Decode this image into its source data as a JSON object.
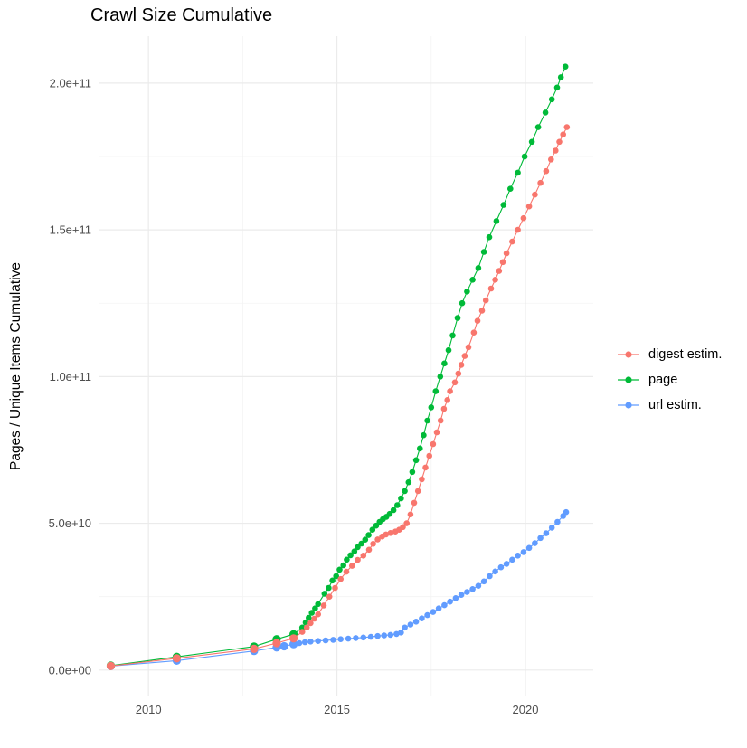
{
  "chart_data": {
    "type": "line",
    "title": "Crawl Size Cumulative",
    "ylabel": "Pages / Unique Items Cumulative",
    "xlabel": "",
    "grid": true,
    "legend_position": "right",
    "xlim": [
      2008.7,
      2021.8
    ],
    "ylim": [
      -9000000000.0,
      216000000000.0
    ],
    "x_ticks": [
      {
        "value": 2010,
        "label": "2010"
      },
      {
        "value": 2015,
        "label": "2015"
      },
      {
        "value": 2020,
        "label": "2020"
      }
    ],
    "y_ticks": [
      {
        "value": 0,
        "label": "0.0e+00"
      },
      {
        "value": 50000000000.0,
        "label": "5.0e+10"
      },
      {
        "value": 100000000000.0,
        "label": "1.0e+11"
      },
      {
        "value": 150000000000.0,
        "label": "1.5e+11"
      },
      {
        "value": 200000000000.0,
        "label": "2.0e+11"
      }
    ],
    "x_minor": [
      2012.5,
      2017.5
    ],
    "y_minor": [
      25000000000.0,
      75000000000.0,
      125000000000.0,
      175000000000.0
    ],
    "colors": {
      "grid_major": "#ebebeb",
      "grid_minor": "#f3f3f3",
      "tick_text": "#4d4d4d"
    },
    "series": [
      {
        "name": "digest estim.",
        "color": "#F8766D",
        "points": [
          [
            2009.0,
            1400000000.0
          ],
          [
            2010.75,
            4000000000.0
          ],
          [
            2012.8,
            7200000000.0
          ],
          [
            2013.4,
            9200000000.0
          ],
          [
            2013.85,
            10800000000.0
          ],
          [
            2014.08,
            13000000000.0
          ],
          [
            2014.2,
            14500000000.0
          ],
          [
            2014.3,
            16000000000.0
          ],
          [
            2014.4,
            17500000000.0
          ],
          [
            2014.5,
            19000000000.0
          ],
          [
            2014.65,
            22000000000.0
          ],
          [
            2014.8,
            25000000000.0
          ],
          [
            2014.95,
            28000000000.0
          ],
          [
            2015.1,
            31000000000.0
          ],
          [
            2015.25,
            33500000000.0
          ],
          [
            2015.4,
            35500000000.0
          ],
          [
            2015.55,
            37500000000.0
          ],
          [
            2015.7,
            39000000000.0
          ],
          [
            2015.85,
            41000000000.0
          ],
          [
            2015.96,
            43000000000.0
          ],
          [
            2016.08,
            44500000000.0
          ],
          [
            2016.2,
            45500000000.0
          ],
          [
            2016.3,
            46200000000.0
          ],
          [
            2016.42,
            46700000000.0
          ],
          [
            2016.55,
            47200000000.0
          ],
          [
            2016.65,
            47800000000.0
          ],
          [
            2016.75,
            48700000000.0
          ],
          [
            2016.85,
            50000000000.0
          ],
          [
            2016.95,
            53000000000.0
          ],
          [
            2017.05,
            57000000000.0
          ],
          [
            2017.15,
            61000000000.0
          ],
          [
            2017.25,
            65000000000.0
          ],
          [
            2017.35,
            69000000000.0
          ],
          [
            2017.45,
            73000000000.0
          ],
          [
            2017.55,
            77000000000.0
          ],
          [
            2017.65,
            81000000000.0
          ],
          [
            2017.75,
            85000000000.0
          ],
          [
            2017.84,
            89000000000.0
          ],
          [
            2017.93,
            92000000000.0
          ],
          [
            2018.0,
            95000000000.0
          ],
          [
            2018.13,
            98000000000.0
          ],
          [
            2018.22,
            101000000000.0
          ],
          [
            2018.3,
            104000000000.0
          ],
          [
            2018.39,
            107000000000.0
          ],
          [
            2018.49,
            110000000000.0
          ],
          [
            2018.63,
            115000000000.0
          ],
          [
            2018.73,
            119000000000.0
          ],
          [
            2018.85,
            122500000000.0
          ],
          [
            2018.95,
            126000000000.0
          ],
          [
            2019.09,
            130000000000.0
          ],
          [
            2019.2,
            133000000000.0
          ],
          [
            2019.3,
            136000000000.0
          ],
          [
            2019.4,
            139000000000.0
          ],
          [
            2019.5,
            142000000000.0
          ],
          [
            2019.65,
            146000000000.0
          ],
          [
            2019.8,
            150000000000.0
          ],
          [
            2019.95,
            154000000000.0
          ],
          [
            2020.1,
            158000000000.0
          ],
          [
            2020.25,
            162000000000.0
          ],
          [
            2020.4,
            166000000000.0
          ],
          [
            2020.55,
            170000000000.0
          ],
          [
            2020.68,
            174000000000.0
          ],
          [
            2020.8,
            177000000000.0
          ],
          [
            2020.9,
            180000000000.0
          ],
          [
            2021.0,
            182500000000.0
          ],
          [
            2021.1,
            185000000000.0
          ]
        ]
      },
      {
        "name": "page",
        "color": "#00BA38",
        "points": [
          [
            2009.0,
            1500000000.0
          ],
          [
            2010.75,
            4500000000.0
          ],
          [
            2012.8,
            8000000000.0
          ],
          [
            2013.4,
            10500000000.0
          ],
          [
            2013.85,
            12200000000.0
          ],
          [
            2014.08,
            14500000000.0
          ],
          [
            2014.17,
            16200000000.0
          ],
          [
            2014.25,
            17800000000.0
          ],
          [
            2014.33,
            19500000000.0
          ],
          [
            2014.42,
            21000000000.0
          ],
          [
            2014.5,
            22500000000.0
          ],
          [
            2014.67,
            26000000000.0
          ],
          [
            2014.78,
            28000000000.0
          ],
          [
            2014.88,
            30500000000.0
          ],
          [
            2014.98,
            32000000000.0
          ],
          [
            2015.07,
            34200000000.0
          ],
          [
            2015.17,
            35700000000.0
          ],
          [
            2015.26,
            37600000000.0
          ],
          [
            2015.36,
            39100000000.0
          ],
          [
            2015.46,
            40400000000.0
          ],
          [
            2015.55,
            41900000000.0
          ],
          [
            2015.65,
            43100000000.0
          ],
          [
            2015.75,
            44400000000.0
          ],
          [
            2015.84,
            46000000000.0
          ],
          [
            2015.94,
            47800000000.0
          ],
          [
            2016.04,
            49200000000.0
          ],
          [
            2016.13,
            50500000000.0
          ],
          [
            2016.22,
            51400000000.0
          ],
          [
            2016.31,
            52200000000.0
          ],
          [
            2016.4,
            53200000000.0
          ],
          [
            2016.5,
            54500000000.0
          ],
          [
            2016.6,
            56200000000.0
          ],
          [
            2016.7,
            58500000000.0
          ],
          [
            2016.8,
            61000000000.0
          ],
          [
            2016.9,
            64000000000.0
          ],
          [
            2017.0,
            67500000000.0
          ],
          [
            2017.1,
            71500000000.0
          ],
          [
            2017.2,
            75500000000.0
          ],
          [
            2017.3,
            80000000000.0
          ],
          [
            2017.4,
            85000000000.0
          ],
          [
            2017.5,
            89500000000.0
          ],
          [
            2017.62,
            95000000000.0
          ],
          [
            2017.74,
            100000000000.0
          ],
          [
            2017.85,
            104500000000.0
          ],
          [
            2017.96,
            109000000000.0
          ],
          [
            2018.07,
            114000000000.0
          ],
          [
            2018.2,
            120000000000.0
          ],
          [
            2018.32,
            125000000000.0
          ],
          [
            2018.45,
            129000000000.0
          ],
          [
            2018.6,
            133000000000.0
          ],
          [
            2018.75,
            137000000000.0
          ],
          [
            2018.9,
            142500000000.0
          ],
          [
            2019.04,
            147500000000.0
          ],
          [
            2019.23,
            153000000000.0
          ],
          [
            2019.42,
            158500000000.0
          ],
          [
            2019.6,
            164000000000.0
          ],
          [
            2019.8,
            169500000000.0
          ],
          [
            2019.98,
            175000000000.0
          ],
          [
            2020.17,
            180000000000.0
          ],
          [
            2020.34,
            185000000000.0
          ],
          [
            2020.53,
            190000000000.0
          ],
          [
            2020.7,
            194500000000.0
          ],
          [
            2020.84,
            198500000000.0
          ],
          [
            2020.94,
            202000000000.0
          ],
          [
            2021.06,
            205600000000.0
          ]
        ]
      },
      {
        "name": "url estim.",
        "color": "#619CFF",
        "points": [
          [
            2009.0,
            1350000000.0
          ],
          [
            2010.75,
            3200000000.0
          ],
          [
            2012.8,
            6500000000.0
          ],
          [
            2013.4,
            7700000000.0
          ],
          [
            2013.6,
            8100000000.0
          ],
          [
            2013.85,
            8800000000.0
          ],
          [
            2014.0,
            9200000000.0
          ],
          [
            2014.15,
            9500000000.0
          ],
          [
            2014.3,
            9700000000.0
          ],
          [
            2014.5,
            9900000000.0
          ],
          [
            2014.7,
            10100000000.0
          ],
          [
            2014.9,
            10300000000.0
          ],
          [
            2015.1,
            10500000000.0
          ],
          [
            2015.3,
            10700000000.0
          ],
          [
            2015.5,
            10900000000.0
          ],
          [
            2015.7,
            11100000000.0
          ],
          [
            2015.9,
            11300000000.0
          ],
          [
            2016.08,
            11600000000.0
          ],
          [
            2016.25,
            11800000000.0
          ],
          [
            2016.42,
            12000000000.0
          ],
          [
            2016.58,
            12300000000.0
          ],
          [
            2016.7,
            12800000000.0
          ],
          [
            2016.8,
            14500000000.0
          ],
          [
            2016.95,
            15500000000.0
          ],
          [
            2017.1,
            16500000000.0
          ],
          [
            2017.25,
            17600000000.0
          ],
          [
            2017.4,
            18700000000.0
          ],
          [
            2017.55,
            19800000000.0
          ],
          [
            2017.7,
            21000000000.0
          ],
          [
            2017.85,
            22100000000.0
          ],
          [
            2018.0,
            23300000000.0
          ],
          [
            2018.15,
            24500000000.0
          ],
          [
            2018.3,
            25600000000.0
          ],
          [
            2018.45,
            26600000000.0
          ],
          [
            2018.6,
            27600000000.0
          ],
          [
            2018.75,
            28700000000.0
          ],
          [
            2018.9,
            30200000000.0
          ],
          [
            2019.05,
            32000000000.0
          ],
          [
            2019.2,
            33600000000.0
          ],
          [
            2019.35,
            35000000000.0
          ],
          [
            2019.5,
            36200000000.0
          ],
          [
            2019.65,
            37600000000.0
          ],
          [
            2019.8,
            39000000000.0
          ],
          [
            2019.95,
            40200000000.0
          ],
          [
            2020.1,
            41600000000.0
          ],
          [
            2020.25,
            43200000000.0
          ],
          [
            2020.4,
            45000000000.0
          ],
          [
            2020.55,
            46600000000.0
          ],
          [
            2020.7,
            48500000000.0
          ],
          [
            2020.85,
            50500000000.0
          ],
          [
            2021.0,
            52500000000.0
          ],
          [
            2021.08,
            53800000000.0
          ]
        ]
      }
    ]
  }
}
